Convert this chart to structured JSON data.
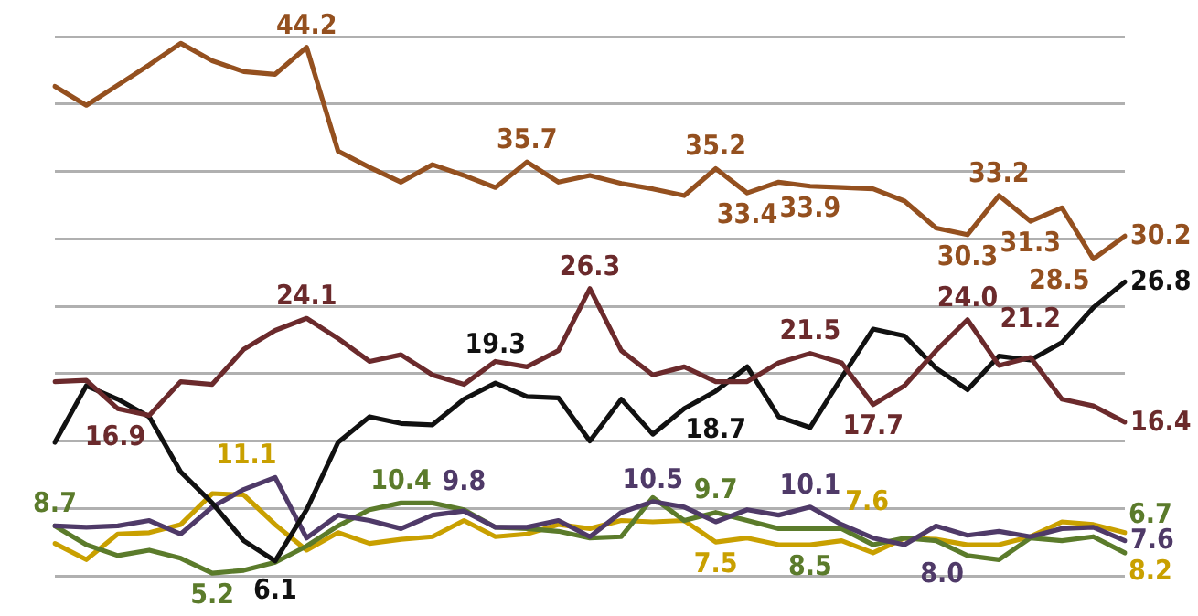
{
  "chart_data": {
    "type": "line",
    "categories": [
      null,
      null,
      null,
      null,
      null,
      null,
      null,
      null,
      null,
      null,
      null,
      null,
      null,
      null,
      null,
      null,
      null,
      null,
      null,
      null,
      null,
      null,
      null,
      null,
      null,
      null,
      null,
      null,
      null,
      null,
      null,
      null,
      null,
      null,
      null
    ],
    "ylim": [
      5,
      45
    ],
    "yticks": [
      {
        "value": 5,
        "label": null
      },
      {
        "value": 10,
        "label": null
      },
      {
        "value": 15,
        "label": null
      },
      {
        "value": 20,
        "label": null
      },
      {
        "value": 25,
        "label": null
      },
      {
        "value": 30,
        "label": null
      },
      {
        "value": 35,
        "label": null
      },
      {
        "value": 40,
        "label": null
      },
      {
        "value": 45,
        "label": null
      }
    ],
    "grid": "y",
    "legend": false,
    "marker": "none",
    "series": [
      {
        "color": "#94501f",
        "values": [
          41.3,
          39.9,
          41.4,
          42.9,
          44.5,
          43.2,
          42.4,
          42.2,
          44.2,
          36.5,
          35.3,
          34.2,
          35.5,
          34.7,
          33.8,
          35.7,
          34.2,
          34.7,
          34.1,
          33.7,
          33.2,
          35.2,
          33.4,
          34.2,
          33.9,
          33.8,
          33.7,
          32.8,
          30.8,
          30.3,
          33.2,
          31.3,
          32.3,
          28.5,
          30.2
        ],
        "value_labels": [
          null,
          null,
          null,
          null,
          null,
          null,
          null,
          null,
          "44.2",
          null,
          null,
          null,
          null,
          null,
          null,
          "35.7",
          null,
          null,
          null,
          null,
          null,
          "35.2",
          "33.4",
          null,
          "33.9",
          null,
          null,
          null,
          null,
          "30.3",
          "33.2",
          "31.3",
          null,
          "28.5",
          "30.2"
        ]
      },
      {
        "color": "#6b2a2c",
        "values": [
          19.4,
          19.5,
          17.4,
          16.9,
          19.4,
          19.2,
          21.8,
          23.2,
          24.1,
          22.6,
          20.9,
          21.4,
          19.9,
          19.2,
          20.9,
          20.5,
          21.7,
          26.3,
          21.7,
          19.9,
          20.5,
          19.4,
          19.4,
          20.8,
          21.5,
          20.8,
          17.7,
          19.1,
          21.7,
          24.0,
          20.6,
          21.2,
          18.1,
          17.6,
          16.4
        ],
        "value_labels": [
          null,
          null,
          null,
          "16.9",
          null,
          null,
          null,
          null,
          "24.1",
          null,
          null,
          null,
          null,
          null,
          null,
          null,
          null,
          "26.3",
          null,
          null,
          null,
          null,
          null,
          null,
          "21.5",
          null,
          "17.7",
          null,
          null,
          "24.0",
          null,
          "21.2",
          null,
          null,
          "16.4"
        ]
      },
      {
        "color": "#111111",
        "values": [
          14.9,
          19.1,
          18.1,
          16.8,
          12.7,
          10.4,
          7.6,
          6.1,
          9.9,
          14.9,
          16.8,
          16.3,
          16.2,
          18.1,
          19.3,
          18.3,
          18.2,
          15.0,
          18.1,
          15.5,
          17.4,
          18.7,
          20.5,
          16.8,
          16.0,
          19.7,
          23.3,
          22.8,
          20.4,
          18.8,
          21.3,
          21.0,
          22.3,
          24.9,
          26.8
        ],
        "value_labels": [
          null,
          null,
          null,
          null,
          null,
          null,
          null,
          "6.1",
          null,
          null,
          null,
          null,
          null,
          null,
          "19.3",
          null,
          null,
          null,
          null,
          null,
          null,
          "18.7",
          null,
          null,
          null,
          null,
          null,
          null,
          null,
          null,
          null,
          null,
          null,
          null,
          "26.8"
        ]
      },
      {
        "color": "#4f3a68",
        "values": [
          8.7,
          8.6,
          8.7,
          9.1,
          8.1,
          10.1,
          11.4,
          12.3,
          7.8,
          9.5,
          9.1,
          8.5,
          9.5,
          9.8,
          8.6,
          8.6,
          9.1,
          7.9,
          9.7,
          10.5,
          10.1,
          9.0,
          9.9,
          9.5,
          10.1,
          8.8,
          7.8,
          7.3,
          8.7,
          8.0,
          8.3,
          7.9,
          8.5,
          8.6,
          7.6
        ],
        "value_labels": [
          null,
          null,
          null,
          null,
          null,
          null,
          null,
          null,
          null,
          null,
          null,
          null,
          null,
          "9.8",
          null,
          null,
          null,
          null,
          null,
          "10.5",
          null,
          null,
          null,
          null,
          "10.1",
          null,
          null,
          null,
          null,
          "8.0",
          null,
          null,
          null,
          null,
          "7.6"
        ]
      },
      {
        "color": "#5b7b2b",
        "values": [
          8.7,
          7.3,
          6.5,
          6.9,
          6.3,
          5.2,
          5.4,
          6.0,
          7.2,
          8.7,
          9.9,
          10.4,
          10.4,
          9.9,
          8.6,
          8.5,
          8.3,
          7.8,
          7.9,
          10.8,
          9.1,
          9.7,
          9.1,
          8.5,
          8.5,
          8.5,
          7.3,
          7.8,
          7.6,
          6.5,
          6.2,
          7.8,
          7.6,
          7.9,
          6.7
        ],
        "value_labels": [
          "8.7",
          null,
          null,
          null,
          null,
          "5.2",
          null,
          null,
          null,
          null,
          null,
          "10.4",
          null,
          null,
          null,
          null,
          null,
          null,
          null,
          null,
          null,
          "9.7",
          null,
          null,
          "8.5",
          null,
          null,
          null,
          null,
          null,
          null,
          null,
          null,
          null,
          "6.7"
        ]
      },
      {
        "color": "#c9a000",
        "values": [
          7.4,
          6.2,
          8.1,
          8.2,
          8.8,
          11.1,
          11.0,
          8.8,
          6.9,
          8.2,
          7.4,
          7.7,
          7.9,
          9.1,
          7.9,
          8.1,
          8.8,
          8.5,
          9.1,
          9.0,
          9.1,
          7.5,
          7.8,
          7.3,
          7.3,
          7.6,
          6.7,
          7.8,
          7.7,
          7.3,
          7.3,
          7.9,
          9.0,
          8.8,
          8.2
        ],
        "value_labels": [
          null,
          null,
          null,
          null,
          null,
          "11.1",
          null,
          null,
          null,
          null,
          null,
          null,
          null,
          null,
          null,
          null,
          null,
          null,
          null,
          null,
          null,
          "7.5",
          null,
          null,
          null,
          "7.6",
          null,
          null,
          null,
          null,
          null,
          null,
          null,
          null,
          "8.2"
        ]
      }
    ]
  }
}
